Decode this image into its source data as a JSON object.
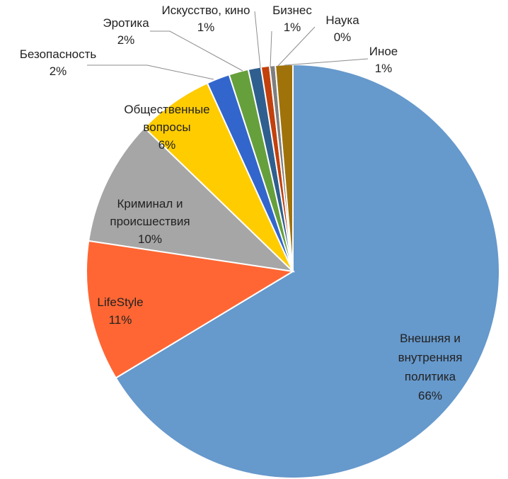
{
  "chart_data": {
    "type": "pie",
    "title": "",
    "slices": [
      {
        "label": [
          "Внешняя и",
          "внутренняя",
          "политика"
        ],
        "value": 66,
        "value_label": "66%",
        "color": "#6699cc",
        "label_placement": "inside"
      },
      {
        "label": [
          "LifeStyle"
        ],
        "value": 11,
        "value_label": "11%",
        "color": "#ff6633",
        "label_placement": "inside"
      },
      {
        "label": [
          "Криминал и",
          "происшествия"
        ],
        "value": 10,
        "value_label": "10%",
        "color": "#a6a6a6",
        "label_placement": "inside"
      },
      {
        "label": [
          "Общественные",
          "вопросы"
        ],
        "value": 6,
        "value_label": "6%",
        "color": "#ffcc00",
        "label_placement": "inside"
      },
      {
        "label": [
          "Безопасность"
        ],
        "value": 2,
        "value_label": "2%",
        "color": "#3366cc",
        "label_placement": "outside"
      },
      {
        "label": [
          "Эротика"
        ],
        "value": 2,
        "value_label": "2%",
        "color": "#66a03c",
        "label_placement": "outside"
      },
      {
        "label": [
          "Искусство, кино"
        ],
        "value": 1,
        "value_label": "1%",
        "color": "#2f5f8f",
        "label_placement": "outside"
      },
      {
        "label": [
          "Бизнес"
        ],
        "value": 1,
        "value_label": "1%",
        "color": "#c2410c",
        "label_placement": "outside"
      },
      {
        "label": [
          "Наука"
        ],
        "value": 0,
        "value_label": "0%",
        "color": "#7f7f7f",
        "label_placement": "outside"
      },
      {
        "label": [
          "Иное"
        ],
        "value": 1,
        "value_label": "1%",
        "color": "#a0720a",
        "label_placement": "outside"
      }
    ],
    "legend": "none"
  }
}
